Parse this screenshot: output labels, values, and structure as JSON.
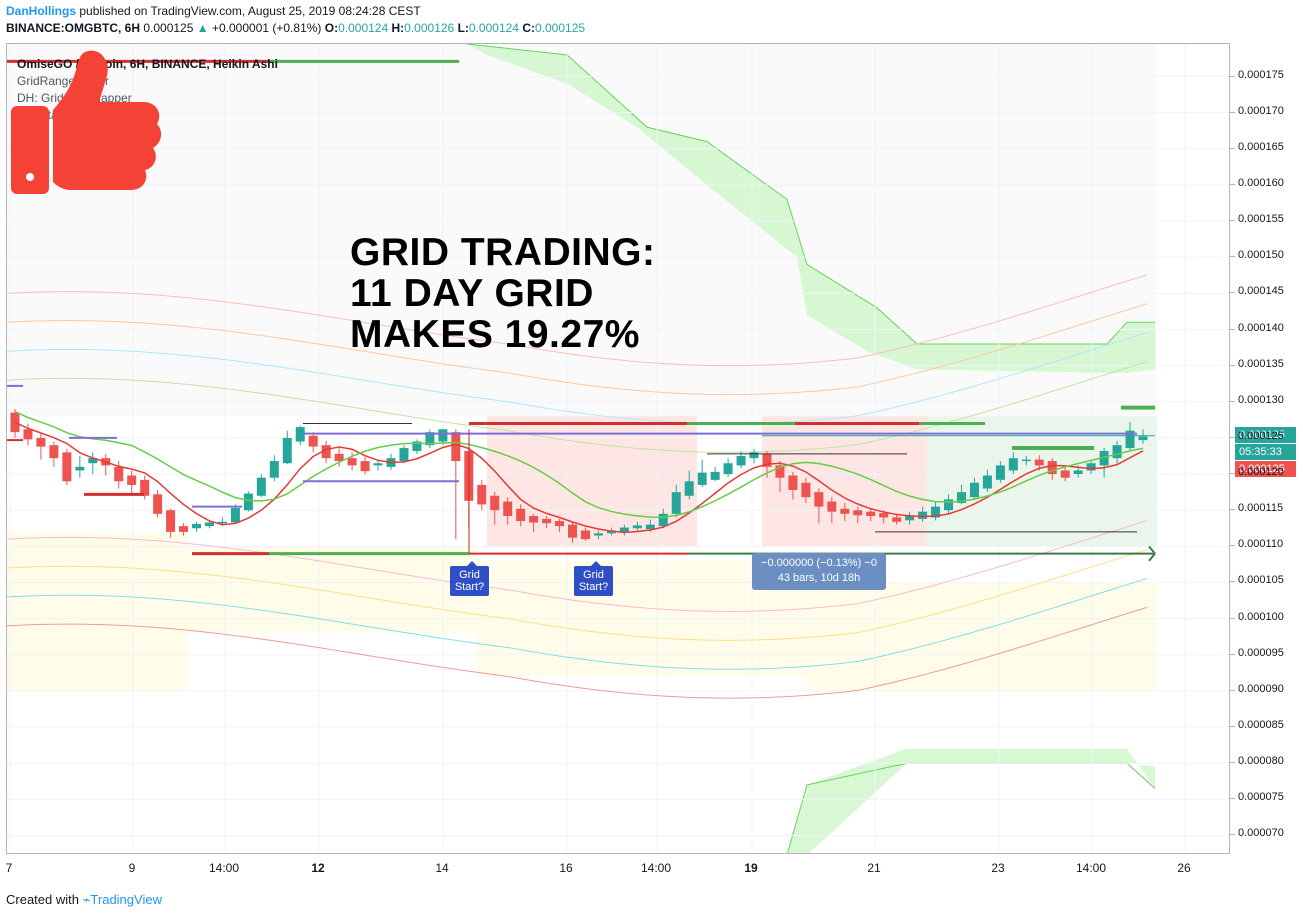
{
  "header": {
    "user": "DanHollings",
    "published_text": "published on TradingView.com, August 25, 2019 08:24:28 CEST",
    "symbol": "BINANCE:OMGBTC, 6H",
    "price": "0.000125",
    "change": "+0.000001 (+0.81%)",
    "o_label": "O:",
    "o_value": "0.000124",
    "h_label": "H:",
    "h_value": "0.000126",
    "l_label": "L:",
    "l_value": "0.000124",
    "c_label": "C:",
    "c_value": "0.000125"
  },
  "legend": {
    "main": "OmiseGO / Bitcoin, 6H, BINANCE, Heikin Ashi",
    "indicators": [
      "GridRangeFinder",
      "DH: Grid Box Mapper",
      "GridStart"
    ]
  },
  "headline": "GRID TRADING:\n11 DAY GRID\nMAKES 19.27%",
  "tags": [
    "Grid Start?",
    "Grid Start?"
  ],
  "measure": {
    "line1": "−0.000000 (−0.13%) −0",
    "line2": "43 bars, 10d 18h"
  },
  "price_labels": {
    "last": "0.000125",
    "countdown": "05:35:33",
    "prev": "0.000125"
  },
  "colors": {
    "up": "#26a69a",
    "down": "#ef5350",
    "grid_red": "#d32f2f",
    "grid_green": "#4caf50",
    "box_line": "#7b6fd6",
    "thumb": "#f44336"
  },
  "chart_data": {
    "type": "candlestick",
    "title": "OmiseGO / Bitcoin, 6H, BINANCE, Heikin Ashi",
    "y_ticks": [
      "0.000175",
      "0.000170",
      "0.000165",
      "0.000160",
      "0.000155",
      "0.000150",
      "0.000145",
      "0.000140",
      "0.000135",
      "0.000130",
      "0.000125",
      "0.000120",
      "0.000115",
      "0.000110",
      "0.000105",
      "0.000100",
      "0.000095",
      "0.000090",
      "0.000085",
      "0.000080",
      "0.000075",
      "0.000070"
    ],
    "ylim": [
      6.73e-05,
      0.0001795
    ],
    "x_ticks": [
      "7",
      "9",
      "14:00",
      "12",
      "14",
      "16",
      "14:00",
      "19",
      "21",
      "23",
      "14:00",
      "26"
    ],
    "x_ticks_bold": [
      "12",
      "19"
    ],
    "grid": true,
    "candles": [
      {
        "o": 0.0001285,
        "c": 0.0001258,
        "h": 0.000129,
        "l": 0.000125
      },
      {
        "o": 0.0001262,
        "c": 0.0001248,
        "h": 0.000127,
        "l": 0.000124
      },
      {
        "o": 0.000125,
        "c": 0.0001238,
        "h": 0.0001256,
        "l": 0.000122
      },
      {
        "o": 0.000124,
        "c": 0.0001222,
        "h": 0.0001245,
        "l": 0.000121
      },
      {
        "o": 0.000123,
        "c": 0.000119,
        "h": 0.0001235,
        "l": 0.0001185
      },
      {
        "o": 0.0001205,
        "c": 0.000121,
        "h": 0.0001225,
        "l": 0.0001195
      },
      {
        "o": 0.0001215,
        "c": 0.0001222,
        "h": 0.000123,
        "l": 0.00012
      },
      {
        "o": 0.0001222,
        "c": 0.0001212,
        "h": 0.0001228,
        "l": 0.0001198
      },
      {
        "o": 0.000121,
        "c": 0.000119,
        "h": 0.0001218,
        "l": 0.000118
      },
      {
        "o": 0.0001198,
        "c": 0.0001185,
        "h": 0.0001205,
        "l": 0.000117
      },
      {
        "o": 0.0001192,
        "c": 0.000117,
        "h": 0.0001198,
        "l": 0.0001165
      },
      {
        "o": 0.0001172,
        "c": 0.0001145,
        "h": 0.0001178,
        "l": 0.000114
      },
      {
        "o": 0.000115,
        "c": 0.000112,
        "h": 0.0001152,
        "l": 0.0001112
      },
      {
        "o": 0.0001128,
        "c": 0.000112,
        "h": 0.0001132,
        "l": 0.0001115
      },
      {
        "o": 0.0001125,
        "c": 0.0001131,
        "h": 0.0001134,
        "l": 0.000112
      },
      {
        "o": 0.0001128,
        "c": 0.0001133,
        "h": 0.0001136,
        "l": 0.0001125
      },
      {
        "o": 0.0001132,
        "c": 0.0001134,
        "h": 0.000114,
        "l": 0.0001128
      },
      {
        "o": 0.0001133,
        "c": 0.0001153,
        "h": 0.0001158,
        "l": 0.0001132
      },
      {
        "o": 0.000115,
        "c": 0.0001173,
        "h": 0.0001176,
        "l": 0.0001148
      },
      {
        "o": 0.000117,
        "c": 0.0001195,
        "h": 0.00012,
        "l": 0.0001168
      },
      {
        "o": 0.0001195,
        "c": 0.0001218,
        "h": 0.0001226,
        "l": 0.000119
      },
      {
        "o": 0.0001215,
        "c": 0.000125,
        "h": 0.000126,
        "l": 0.0001214
      },
      {
        "o": 0.0001245,
        "c": 0.0001265,
        "h": 0.0001267,
        "l": 0.000124
      },
      {
        "o": 0.0001253,
        "c": 0.0001238,
        "h": 0.0001258,
        "l": 0.000123
      },
      {
        "o": 0.000124,
        "c": 0.0001222,
        "h": 0.0001246,
        "l": 0.0001215
      },
      {
        "o": 0.0001228,
        "c": 0.0001218,
        "h": 0.0001236,
        "l": 0.000121
      },
      {
        "o": 0.0001222,
        "c": 0.0001212,
        "h": 0.000123,
        "l": 0.0001205
      },
      {
        "o": 0.0001218,
        "c": 0.0001204,
        "h": 0.0001224,
        "l": 0.00012
      },
      {
        "o": 0.0001212,
        "c": 0.0001215,
        "h": 0.000122,
        "l": 0.0001205
      },
      {
        "o": 0.000121,
        "c": 0.0001222,
        "h": 0.0001228,
        "l": 0.0001206
      },
      {
        "o": 0.0001218,
        "c": 0.0001236,
        "h": 0.000124,
        "l": 0.0001215
      },
      {
        "o": 0.0001232,
        "c": 0.0001245,
        "h": 0.0001248,
        "l": 0.0001228
      },
      {
        "o": 0.000124,
        "c": 0.0001258,
        "h": 0.0001262,
        "l": 0.0001236
      },
      {
        "o": 0.0001245,
        "c": 0.0001262,
        "h": 0.0001263,
        "l": 0.000124
      },
      {
        "o": 0.0001258,
        "c": 0.0001218,
        "h": 0.0001262,
        "l": 0.000111
      },
      {
        "o": 0.0001232,
        "c": 0.0001163,
        "h": 0.0001238,
        "l": 0.0001125
      },
      {
        "o": 0.0001185,
        "c": 0.0001158,
        "h": 0.0001192,
        "l": 0.000115
      },
      {
        "o": 0.000117,
        "c": 0.000115,
        "h": 0.0001175,
        "l": 0.000113
      },
      {
        "o": 0.0001162,
        "c": 0.0001142,
        "h": 0.0001168,
        "l": 0.000113
      },
      {
        "o": 0.0001152,
        "c": 0.0001135,
        "h": 0.0001158,
        "l": 0.0001128
      },
      {
        "o": 0.0001142,
        "c": 0.0001133,
        "h": 0.0001145,
        "l": 0.000112
      },
      {
        "o": 0.0001138,
        "c": 0.0001132,
        "h": 0.0001142,
        "l": 0.0001125
      },
      {
        "o": 0.0001135,
        "c": 0.0001128,
        "h": 0.0001138,
        "l": 0.000112
      },
      {
        "o": 0.000113,
        "c": 0.0001112,
        "h": 0.0001134,
        "l": 0.0001105
      },
      {
        "o": 0.0001122,
        "c": 0.000111,
        "h": 0.0001126,
        "l": 0.0001108
      },
      {
        "o": 0.0001115,
        "c": 0.0001118,
        "h": 0.0001122,
        "l": 0.000111
      },
      {
        "o": 0.0001118,
        "c": 0.0001122,
        "h": 0.0001126,
        "l": 0.0001115
      },
      {
        "o": 0.000112,
        "c": 0.0001126,
        "h": 0.000113,
        "l": 0.0001115
      },
      {
        "o": 0.0001125,
        "c": 0.0001129,
        "h": 0.0001134,
        "l": 0.000112
      },
      {
        "o": 0.0001124,
        "c": 0.000113,
        "h": 0.0001137,
        "l": 0.000112
      },
      {
        "o": 0.0001128,
        "c": 0.0001145,
        "h": 0.0001152,
        "l": 0.0001125
      },
      {
        "o": 0.0001145,
        "c": 0.0001175,
        "h": 0.0001185,
        "l": 0.000114
      },
      {
        "o": 0.000117,
        "c": 0.000119,
        "h": 0.0001205,
        "l": 0.0001165
      },
      {
        "o": 0.0001185,
        "c": 0.0001202,
        "h": 0.000122,
        "l": 0.0001182
      },
      {
        "o": 0.0001192,
        "c": 0.0001203,
        "h": 0.000121,
        "l": 0.000119
      },
      {
        "o": 0.00012,
        "c": 0.0001215,
        "h": 0.0001222,
        "l": 0.0001196
      },
      {
        "o": 0.0001212,
        "c": 0.0001225,
        "h": 0.0001232,
        "l": 0.0001208
      },
      {
        "o": 0.0001222,
        "c": 0.000123,
        "h": 0.0001235,
        "l": 0.0001215
      },
      {
        "o": 0.0001228,
        "c": 0.000121,
        "h": 0.0001232,
        "l": 0.0001195
      },
      {
        "o": 0.0001212,
        "c": 0.0001195,
        "h": 0.0001218,
        "l": 0.0001175
      },
      {
        "o": 0.0001198,
        "c": 0.0001178,
        "h": 0.0001203,
        "l": 0.0001165
      },
      {
        "o": 0.0001188,
        "c": 0.0001168,
        "h": 0.0001195,
        "l": 0.000116
      },
      {
        "o": 0.0001175,
        "c": 0.0001155,
        "h": 0.000118,
        "l": 0.0001132
      },
      {
        "o": 0.0001162,
        "c": 0.0001148,
        "h": 0.0001168,
        "l": 0.0001132
      },
      {
        "o": 0.0001152,
        "c": 0.0001145,
        "h": 0.000116,
        "l": 0.0001135
      },
      {
        "o": 0.000115,
        "c": 0.0001143,
        "h": 0.0001155,
        "l": 0.0001132
      },
      {
        "o": 0.0001148,
        "c": 0.0001142,
        "h": 0.0001152,
        "l": 0.0001135
      },
      {
        "o": 0.0001146,
        "c": 0.000114,
        "h": 0.000115,
        "l": 0.0001132
      },
      {
        "o": 0.000114,
        "c": 0.0001134,
        "h": 0.0001145,
        "l": 0.000113
      },
      {
        "o": 0.0001136,
        "c": 0.0001142,
        "h": 0.0001148,
        "l": 0.000113
      },
      {
        "o": 0.0001138,
        "c": 0.0001148,
        "h": 0.0001155,
        "l": 0.0001134
      },
      {
        "o": 0.000114,
        "c": 0.0001155,
        "h": 0.0001162,
        "l": 0.0001136
      },
      {
        "o": 0.000115,
        "c": 0.0001165,
        "h": 0.0001172,
        "l": 0.0001145
      },
      {
        "o": 0.000116,
        "c": 0.0001175,
        "h": 0.0001185,
        "l": 0.0001158
      },
      {
        "o": 0.0001168,
        "c": 0.0001188,
        "h": 0.0001195,
        "l": 0.0001165
      },
      {
        "o": 0.000118,
        "c": 0.0001198,
        "h": 0.0001206,
        "l": 0.0001175
      },
      {
        "o": 0.0001192,
        "c": 0.0001212,
        "h": 0.0001218,
        "l": 0.0001188
      },
      {
        "o": 0.0001205,
        "c": 0.0001222,
        "h": 0.000123,
        "l": 0.00012
      },
      {
        "o": 0.0001218,
        "c": 0.000122,
        "h": 0.0001225,
        "l": 0.0001212
      },
      {
        "o": 0.000122,
        "c": 0.0001212,
        "h": 0.0001226,
        "l": 0.0001205
      },
      {
        "o": 0.0001218,
        "c": 0.00012,
        "h": 0.0001222,
        "l": 0.0001192
      },
      {
        "o": 0.0001205,
        "c": 0.0001195,
        "h": 0.000121,
        "l": 0.000119
      },
      {
        "o": 0.00012,
        "c": 0.0001205,
        "h": 0.0001212,
        "l": 0.0001195
      },
      {
        "o": 0.0001205,
        "c": 0.0001215,
        "h": 0.0001218,
        "l": 0.00012
      },
      {
        "o": 0.0001212,
        "c": 0.0001232,
        "h": 0.0001236,
        "l": 0.0001195
      },
      {
        "o": 0.0001222,
        "c": 0.000124,
        "h": 0.0001246,
        "l": 0.0001215
      },
      {
        "o": 0.0001236,
        "c": 0.000126,
        "h": 0.0001272,
        "l": 0.0001232
      },
      {
        "o": 0.0001247,
        "c": 0.0001252,
        "h": 0.0001262,
        "l": 0.0001242
      }
    ]
  }
}
